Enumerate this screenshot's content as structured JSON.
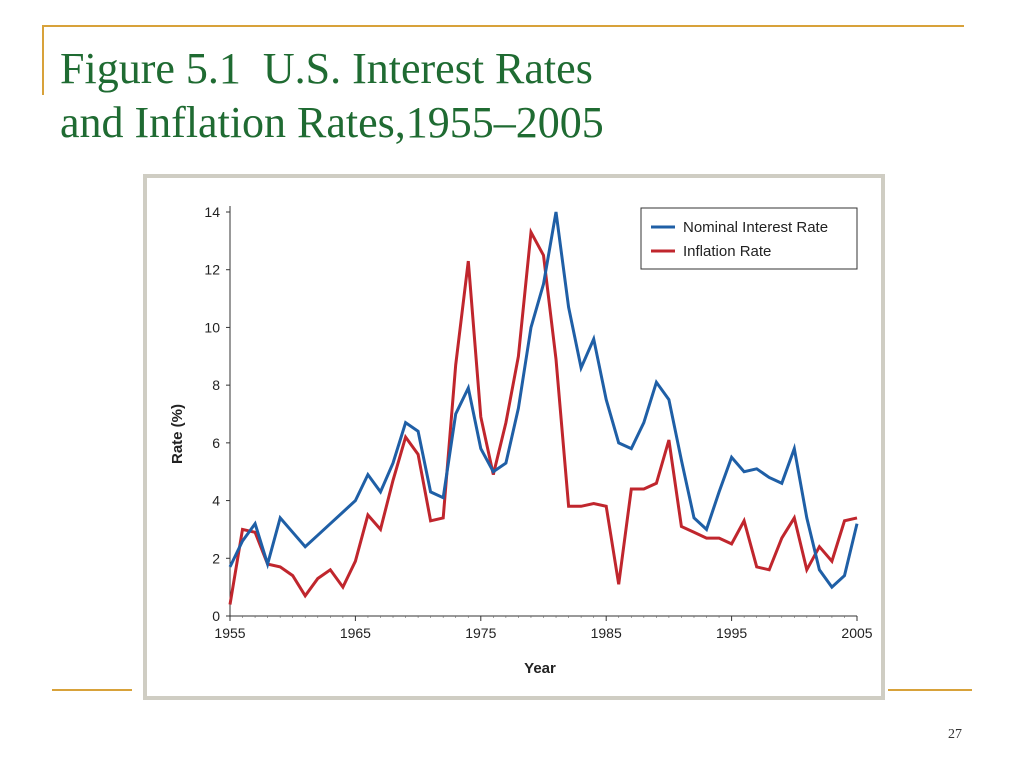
{
  "slide": {
    "title_line1": "Figure 5.1  U.S. Interest Rates",
    "title_line2": "and Inflation Rates,1955–2005",
    "page_number": "27",
    "accent_color": "#d8a23a",
    "title_color": "#1f6b32"
  },
  "chart_data": {
    "type": "line",
    "title": "",
    "xlabel": "Year",
    "ylabel": "Rate (%)",
    "xlim": [
      1955,
      2005
    ],
    "ylim": [
      0,
      14
    ],
    "x_ticks": [
      1955,
      1965,
      1975,
      1985,
      1995,
      2005
    ],
    "y_ticks": [
      0,
      2,
      4,
      6,
      8,
      10,
      12,
      14
    ],
    "grid": false,
    "legend_position": "top-right",
    "x": [
      1955,
      1956,
      1957,
      1958,
      1959,
      1960,
      1961,
      1962,
      1963,
      1964,
      1965,
      1966,
      1967,
      1968,
      1969,
      1970,
      1971,
      1972,
      1973,
      1974,
      1975,
      1976,
      1977,
      1978,
      1979,
      1980,
      1981,
      1982,
      1983,
      1984,
      1985,
      1986,
      1987,
      1988,
      1989,
      1990,
      1991,
      1992,
      1993,
      1994,
      1995,
      1996,
      1997,
      1998,
      1999,
      2000,
      2001,
      2002,
      2003,
      2004,
      2005
    ],
    "series": [
      {
        "name": "Nominal Interest Rate",
        "color": "#1f5fa6",
        "values": [
          1.7,
          2.6,
          3.2,
          1.8,
          3.4,
          2.9,
          2.4,
          2.8,
          3.2,
          3.6,
          4.0,
          4.9,
          4.3,
          5.3,
          6.7,
          6.4,
          4.3,
          4.1,
          7.0,
          7.9,
          5.8,
          5.0,
          5.3,
          7.2,
          10.0,
          11.5,
          14.0,
          10.7,
          8.6,
          9.6,
          7.5,
          6.0,
          5.8,
          6.7,
          8.1,
          7.5,
          5.4,
          3.4,
          3.0,
          4.3,
          5.5,
          5.0,
          5.1,
          4.8,
          4.6,
          5.8,
          3.4,
          1.6,
          1.0,
          1.4,
          3.2
        ]
      },
      {
        "name": "Inflation Rate",
        "color": "#c0262d",
        "values": [
          0.4,
          3.0,
          2.9,
          1.8,
          1.7,
          1.4,
          0.7,
          1.3,
          1.6,
          1.0,
          1.9,
          3.5,
          3.0,
          4.7,
          6.2,
          5.6,
          3.3,
          3.4,
          8.7,
          12.3,
          6.9,
          4.9,
          6.7,
          9.0,
          13.3,
          12.5,
          8.9,
          3.8,
          3.8,
          3.9,
          3.8,
          1.1,
          4.4,
          4.4,
          4.6,
          6.1,
          3.1,
          2.9,
          2.7,
          2.7,
          2.5,
          3.3,
          1.7,
          1.6,
          2.7,
          3.4,
          1.6,
          2.4,
          1.9,
          3.3,
          3.4
        ]
      }
    ]
  }
}
